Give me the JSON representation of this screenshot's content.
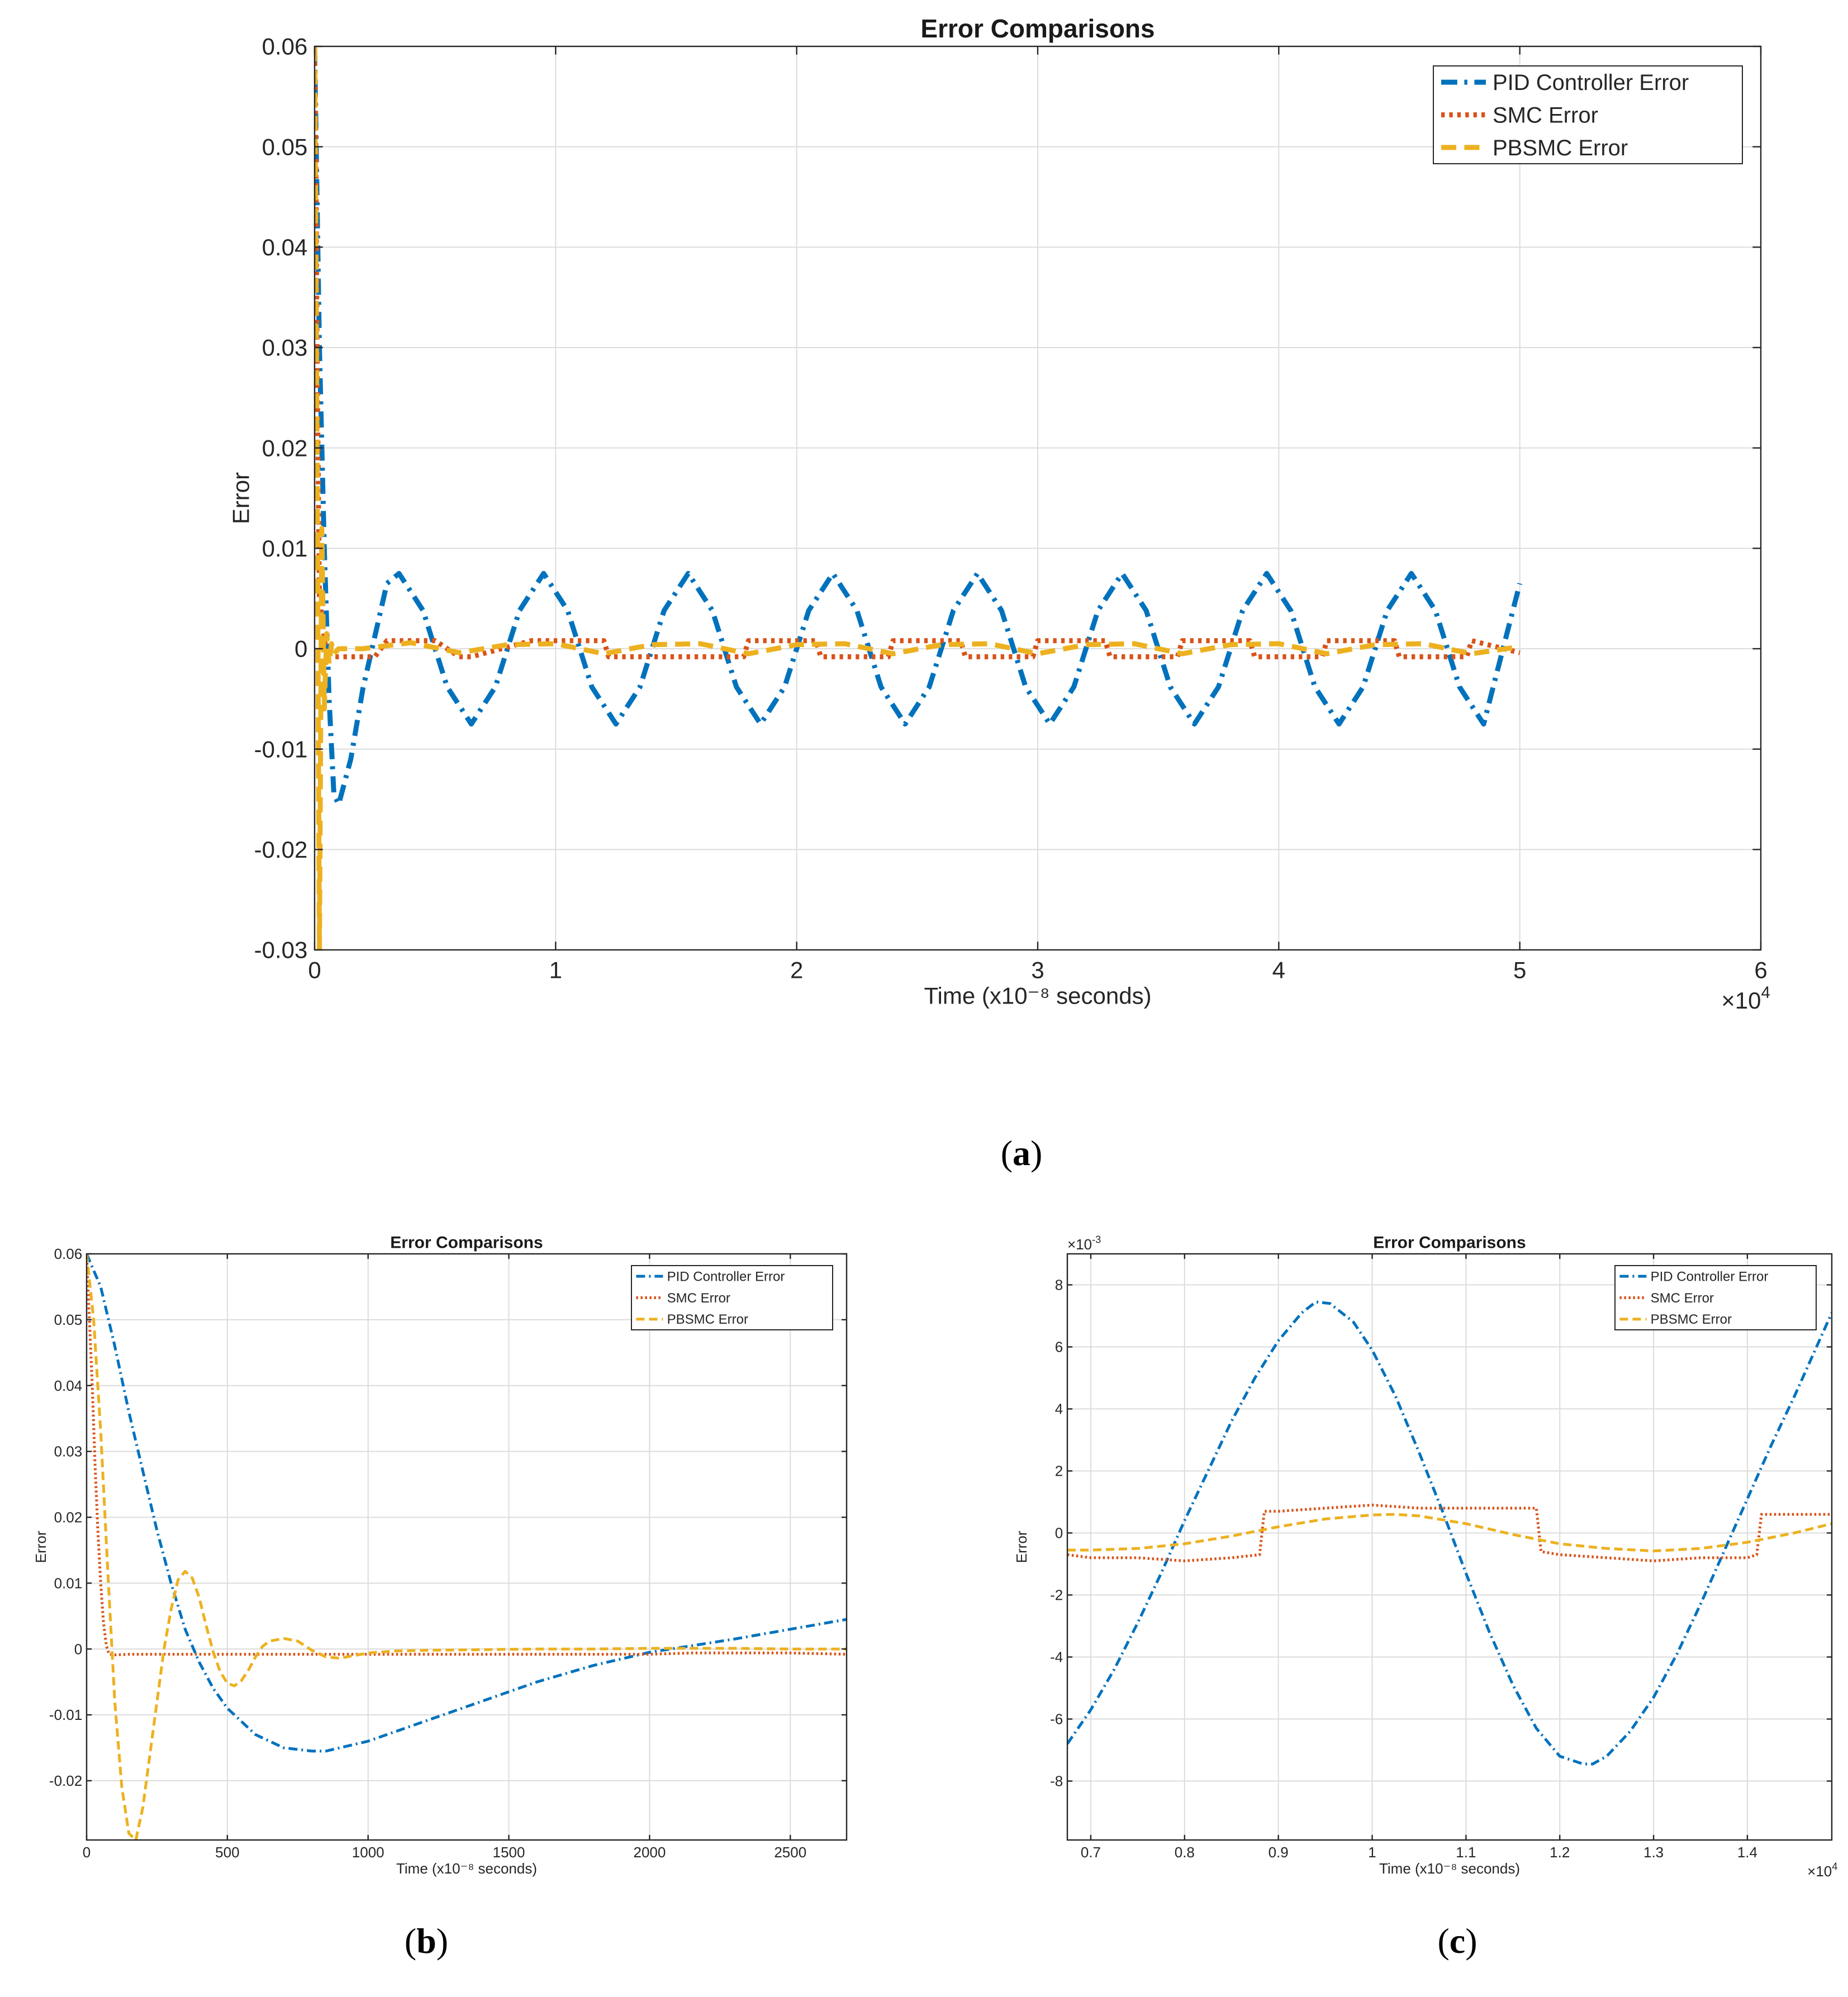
{
  "series_styles": [
    {
      "key": "pid",
      "color": "#0072BD",
      "dash": "dashdot"
    },
    {
      "key": "smc",
      "color": "#D95319",
      "dash": "dotted"
    },
    {
      "key": "pbsmc",
      "color": "#EDB120",
      "dash": "dashed"
    }
  ],
  "chart_data": [
    {
      "id": "a",
      "type": "line",
      "caption_label": "a",
      "title": "Error Comparisons",
      "xlabel": "Time (x10⁻⁸ seconds)",
      "ylabel": "Error",
      "x_multiplier": "×10",
      "x_multiplier_exp": "4",
      "y_multiplier": "",
      "y_multiplier_exp": "",
      "xlim": [
        0,
        6
      ],
      "ylim": [
        -0.03,
        0.06
      ],
      "xticks": [
        0,
        1,
        2,
        3,
        4,
        5,
        6
      ],
      "xtick_labels": [
        "0",
        "1",
        "2",
        "3",
        "4",
        "5",
        "6"
      ],
      "yticks": [
        -0.03,
        -0.02,
        -0.01,
        0,
        0.01,
        0.02,
        0.03,
        0.04,
        0.05,
        0.06
      ],
      "ytick_labels": [
        "-0.03",
        "-0.02",
        "-0.01",
        "0",
        "0.01",
        "0.02",
        "0.03",
        "0.04",
        "0.05",
        "0.06"
      ],
      "grid": true,
      "legend_position": "top-right",
      "series": [
        {
          "name": "PID Controller Error",
          "style": "pid",
          "x": [
            0,
            0.01,
            0.02,
            0.04,
            0.06,
            0.08,
            0.1,
            0.15,
            0.2,
            0.3,
            0.35,
            0.45,
            0.55,
            0.65,
            0.75,
            0.85,
            0.95,
            1.05,
            1.15,
            1.25,
            1.35,
            1.45,
            1.55,
            1.65,
            1.75,
            1.85,
            1.95,
            2.05,
            2.15,
            2.25,
            2.35,
            2.45,
            2.55,
            2.65,
            2.75,
            2.85,
            2.95,
            3.05,
            3.15,
            3.25,
            3.35,
            3.45,
            3.55,
            3.65,
            3.75,
            3.85,
            3.95,
            4.05,
            4.15,
            4.25,
            4.35,
            4.45,
            4.55,
            4.65,
            4.75,
            4.85,
            5.0
          ],
          "y": [
            0.06,
            0.045,
            0.03,
            0.01,
            -0.005,
            -0.0145,
            -0.0155,
            -0.011,
            -0.004,
            0.0065,
            0.0075,
            0.0038,
            -0.0038,
            -0.0075,
            -0.0038,
            0.0038,
            0.0075,
            0.0038,
            -0.0038,
            -0.0075,
            -0.0038,
            0.0038,
            0.0075,
            0.0038,
            -0.0038,
            -0.0075,
            -0.0038,
            0.0038,
            0.0075,
            0.0038,
            -0.0038,
            -0.0075,
            -0.0038,
            0.0038,
            0.0075,
            0.0038,
            -0.0038,
            -0.0075,
            -0.0038,
            0.0038,
            0.0075,
            0.0038,
            -0.0038,
            -0.0075,
            -0.0038,
            0.0038,
            0.0075,
            0.0038,
            -0.0038,
            -0.0075,
            -0.0038,
            0.0038,
            0.0075,
            0.0038,
            -0.0038,
            -0.0075,
            0.0065
          ]
        },
        {
          "name": "SMC Error",
          "style": "smc",
          "x": [
            0,
            0.005,
            0.01,
            0.02,
            0.05,
            0.1,
            0.15,
            0.25,
            0.3,
            0.45,
            0.5,
            0.6,
            0.65,
            0.9,
            1.2,
            1.22,
            1.5,
            1.78,
            1.8,
            2.08,
            2.1,
            2.38,
            2.4,
            2.68,
            2.7,
            2.98,
            3.0,
            3.28,
            3.3,
            3.58,
            3.6,
            3.88,
            3.9,
            4.18,
            4.2,
            4.48,
            4.5,
            4.78,
            4.8,
            5.0
          ],
          "y": [
            0.06,
            0.05,
            0.03,
            0.005,
            -0.0008,
            -0.0008,
            -0.0008,
            -0.0008,
            0.0008,
            0.0008,
            0.0008,
            -0.0008,
            -0.0008,
            0.0008,
            0.0008,
            -0.0008,
            -0.0008,
            -0.0008,
            0.0008,
            0.0008,
            -0.0008,
            -0.0008,
            0.0008,
            0.0008,
            -0.0008,
            -0.0008,
            0.0008,
            0.0008,
            -0.0008,
            -0.0008,
            0.0008,
            0.0008,
            -0.0008,
            -0.0008,
            0.0008,
            0.0008,
            -0.0008,
            -0.0008,
            0.0008,
            -0.0004
          ]
        },
        {
          "name": "PBSMC Error",
          "style": "pbsmc",
          "x": [
            0,
            0.01,
            0.02,
            0.03,
            0.04,
            0.05,
            0.06,
            0.07,
            0.08,
            0.1,
            0.2,
            0.4,
            0.6,
            0.8,
            1.0,
            1.2,
            1.4,
            1.6,
            1.8,
            2.0,
            2.2,
            2.4,
            2.6,
            2.8,
            3.0,
            3.2,
            3.4,
            3.6,
            3.8,
            4.0,
            4.2,
            4.4,
            4.6,
            4.8,
            5.0
          ],
          "y": [
            0.06,
            0.02,
            -0.03,
            0.012,
            -0.006,
            0.0015,
            -0.0015,
            0.0005,
            -0.0005,
            0.0,
            0.0,
            0.0006,
            -0.0004,
            0.0004,
            0.0005,
            -0.0005,
            0.0004,
            0.0005,
            -0.0005,
            0.0004,
            0.0005,
            -0.0005,
            0.0004,
            0.0005,
            -0.0005,
            0.0004,
            0.0005,
            -0.0005,
            0.0004,
            0.0005,
            -0.0005,
            0.0004,
            0.0005,
            -0.0005,
            0.0002
          ]
        }
      ]
    },
    {
      "id": "b",
      "type": "line",
      "caption_label": "b",
      "title": "Error Comparisons",
      "xlabel": "Time (x10⁻⁸ seconds)",
      "ylabel": "Error",
      "x_multiplier": "",
      "x_multiplier_exp": "",
      "y_multiplier": "",
      "y_multiplier_exp": "",
      "xlim": [
        0,
        2700
      ],
      "ylim": [
        -0.029,
        0.06
      ],
      "xticks": [
        0,
        500,
        1000,
        1500,
        2000,
        2500
      ],
      "xtick_labels": [
        "0",
        "500",
        "1000",
        "1500",
        "2000",
        "2500"
      ],
      "yticks": [
        -0.02,
        -0.01,
        0,
        0.01,
        0.02,
        0.03,
        0.04,
        0.05,
        0.06
      ],
      "ytick_labels": [
        "-0.02",
        "-0.01",
        "0",
        "0.01",
        "0.02",
        "0.03",
        "0.04",
        "0.05",
        "0.06"
      ],
      "grid": true,
      "legend_position": "top-right",
      "series": [
        {
          "name": "PID Controller Error",
          "style": "pid",
          "x": [
            0,
            50,
            100,
            150,
            200,
            250,
            300,
            350,
            400,
            450,
            500,
            600,
            700,
            800,
            850,
            900,
            1000,
            1200,
            1400,
            1600,
            1800,
            2000,
            2150,
            2300,
            2500,
            2700
          ],
          "y": [
            0.06,
            0.055,
            0.046,
            0.036,
            0.027,
            0.018,
            0.01,
            0.003,
            -0.002,
            -0.006,
            -0.009,
            -0.013,
            -0.015,
            -0.0155,
            -0.0155,
            -0.015,
            -0.014,
            -0.011,
            -0.008,
            -0.005,
            -0.0025,
            -0.0005,
            0.0005,
            0.0015,
            0.003,
            0.0045
          ]
        },
        {
          "name": "SMC Error",
          "style": "smc",
          "x": [
            0,
            10,
            20,
            30,
            40,
            50,
            60,
            70,
            80,
            100,
            150,
            300,
            600,
            1000,
            1500,
            2000,
            2150,
            2300,
            2500,
            2700
          ],
          "y": [
            0.06,
            0.05,
            0.04,
            0.028,
            0.018,
            0.01,
            0.004,
            0.0005,
            -0.0008,
            -0.0009,
            -0.0008,
            -0.0008,
            -0.0008,
            -0.0008,
            -0.0008,
            -0.0008,
            -0.0006,
            -0.0006,
            -0.0006,
            -0.0008
          ]
        },
        {
          "name": "PBSMC Error",
          "style": "pbsmc",
          "x": [
            0,
            25,
            50,
            75,
            100,
            125,
            150,
            175,
            200,
            225,
            250,
            275,
            300,
            325,
            350,
            375,
            400,
            425,
            450,
            475,
            500,
            525,
            550,
            575,
            600,
            625,
            650,
            700,
            750,
            775,
            800,
            850,
            900,
            950,
            1000,
            1100,
            1200,
            1400,
            1600,
            1800,
            2000,
            2300,
            2500,
            2700
          ],
          "y": [
            0.06,
            0.05,
            0.033,
            0.012,
            -0.008,
            -0.021,
            -0.028,
            -0.029,
            -0.024,
            -0.016,
            -0.008,
            0.0,
            0.006,
            0.0105,
            0.0118,
            0.0108,
            0.0078,
            0.0035,
            -0.0005,
            -0.0035,
            -0.0052,
            -0.0056,
            -0.0048,
            -0.0032,
            -0.0012,
            0.0004,
            0.0012,
            0.0016,
            0.0012,
            0.0005,
            -0.0002,
            -0.0012,
            -0.0014,
            -0.001,
            -0.0006,
            -0.0003,
            -0.0002,
            -0.0001,
            0.0,
            0.0,
            0.0001,
            0.0001,
            0.0,
            0.0
          ]
        }
      ]
    },
    {
      "id": "c",
      "type": "line",
      "caption_label": "c",
      "title": "Error Comparisons",
      "xlabel": "Time (x10⁻⁸ seconds)",
      "ylabel": "Error",
      "x_multiplier": "×10",
      "x_multiplier_exp": "4",
      "y_multiplier": "×10",
      "y_multiplier_exp": "-3",
      "xlim": [
        0.675,
        1.49
      ],
      "ylim": [
        -9.9,
        9.0
      ],
      "xticks": [
        0.7,
        0.8,
        0.9,
        1.0,
        1.1,
        1.2,
        1.3,
        1.4
      ],
      "xtick_labels": [
        "0.7",
        "0.8",
        "0.9",
        "1",
        "1.1",
        "1.2",
        "1.3",
        "1.4"
      ],
      "yticks": [
        -8,
        -6,
        -4,
        -2,
        0,
        2,
        4,
        6,
        8
      ],
      "ytick_labels": [
        "-8",
        "-6",
        "-4",
        "-2",
        "0",
        "2",
        "4",
        "6",
        "8"
      ],
      "grid": true,
      "legend_position": "top-right",
      "series": [
        {
          "name": "PID Controller Error",
          "style": "pid",
          "x": [
            0.675,
            0.7,
            0.725,
            0.75,
            0.775,
            0.8,
            0.825,
            0.85,
            0.875,
            0.9,
            0.925,
            0.94,
            0.955,
            0.98,
            1.0,
            1.025,
            1.05,
            1.075,
            1.1,
            1.125,
            1.15,
            1.175,
            1.2,
            1.225,
            1.235,
            1.25,
            1.275,
            1.3,
            1.325,
            1.35,
            1.375,
            1.4,
            1.425,
            1.45,
            1.49
          ],
          "y": [
            -6.8,
            -5.7,
            -4.4,
            -2.9,
            -1.3,
            0.4,
            2.0,
            3.6,
            5.0,
            6.2,
            7.1,
            7.45,
            7.4,
            6.8,
            5.9,
            4.4,
            2.6,
            0.7,
            -1.3,
            -3.2,
            -4.9,
            -6.3,
            -7.2,
            -7.45,
            -7.45,
            -7.2,
            -6.4,
            -5.3,
            -3.9,
            -2.3,
            -0.6,
            1.1,
            2.8,
            4.4,
            7.1
          ]
        },
        {
          "name": "SMC Error",
          "style": "smc",
          "x": [
            0.675,
            0.7,
            0.75,
            0.8,
            0.85,
            0.88,
            0.885,
            0.9,
            0.95,
            1.0,
            1.05,
            1.1,
            1.15,
            1.175,
            1.18,
            1.2,
            1.25,
            1.3,
            1.35,
            1.4,
            1.41,
            1.415,
            1.45,
            1.49
          ],
          "y": [
            -0.7,
            -0.8,
            -0.8,
            -0.9,
            -0.8,
            -0.7,
            0.7,
            0.7,
            0.8,
            0.9,
            0.8,
            0.8,
            0.8,
            0.8,
            -0.6,
            -0.7,
            -0.8,
            -0.9,
            -0.8,
            -0.8,
            -0.7,
            0.6,
            0.6,
            0.6
          ]
        },
        {
          "name": "PBSMC Error",
          "style": "pbsmc",
          "x": [
            0.675,
            0.7,
            0.75,
            0.8,
            0.85,
            0.9,
            0.95,
            1.0,
            1.025,
            1.05,
            1.1,
            1.15,
            1.2,
            1.25,
            1.3,
            1.35,
            1.4,
            1.45,
            1.49
          ],
          "y": [
            -0.55,
            -0.55,
            -0.5,
            -0.35,
            -0.1,
            0.2,
            0.45,
            0.58,
            0.6,
            0.55,
            0.3,
            -0.05,
            -0.35,
            -0.5,
            -0.58,
            -0.5,
            -0.3,
            0.0,
            0.3
          ]
        }
      ]
    }
  ]
}
